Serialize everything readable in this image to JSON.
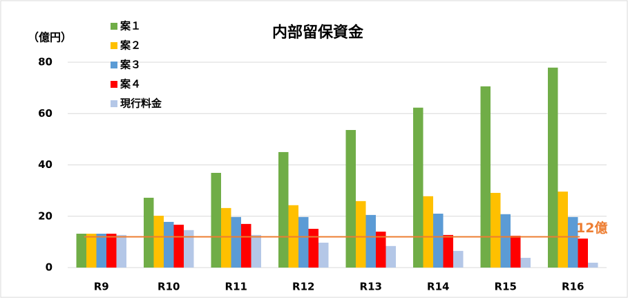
{
  "chart_data": {
    "type": "bar",
    "title": "内部留保資金",
    "y_label": "（億円）",
    "categories": [
      "R9",
      "R10",
      "R11",
      "R12",
      "R13",
      "R14",
      "R15",
      "R16"
    ],
    "series": [
      {
        "name": "案１",
        "color": "#70ad47",
        "values": [
          13.2,
          27.2,
          36.9,
          45,
          53.6,
          62.3,
          70.6,
          77.9
        ]
      },
      {
        "name": "案２",
        "color": "#ffc000",
        "values": [
          13.2,
          20.2,
          23.2,
          24.3,
          25.9,
          27.8,
          29.1,
          29.6
        ]
      },
      {
        "name": "案３",
        "color": "#5b9bd5",
        "values": [
          13.2,
          17.8,
          19.7,
          19.7,
          20.5,
          21,
          20.8,
          19.7
        ]
      },
      {
        "name": "案４",
        "color": "#ff0000",
        "values": [
          13.2,
          16.7,
          17,
          15.1,
          14,
          12.7,
          12.4,
          11.3
        ]
      },
      {
        "name": "現行料金",
        "color": "#b4c7e7",
        "values": [
          12.7,
          14.6,
          12.7,
          9.7,
          8.4,
          6.5,
          3.8,
          1.9
        ]
      }
    ],
    "reference_line": {
      "value": 12,
      "label": "12億",
      "color": "#ed7d31"
    },
    "ylim": [
      0,
      80
    ],
    "yticks": [
      0,
      20,
      40,
      60,
      80
    ],
    "grid": true,
    "legend": "top-left"
  }
}
